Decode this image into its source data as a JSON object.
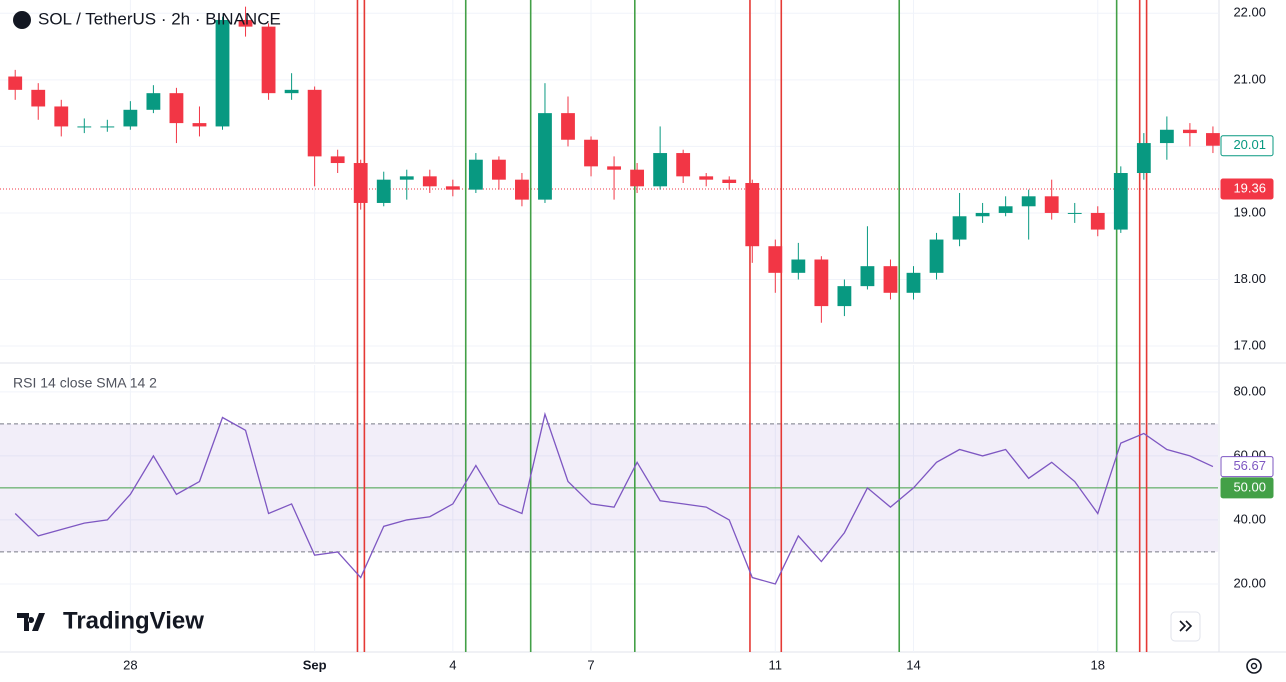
{
  "chart_data": {
    "type": "candlestick",
    "title": "SOL / TetherUS · 2h · BINANCE",
    "brand": "TradingView",
    "x": [
      25.5,
      26,
      26.5,
      27,
      27.5,
      28,
      28.5,
      29,
      29.5,
      30,
      30.5,
      31,
      31.5,
      32,
      32.5,
      33,
      33.5,
      34,
      34.5,
      35,
      35.5,
      36,
      36.5,
      37,
      37.5,
      38,
      38.5,
      39,
      39.5,
      40,
      40.5,
      41,
      41.5,
      42,
      42.5,
      43,
      43.5,
      44,
      44.5,
      45,
      45.5,
      46,
      46.5,
      47,
      47.5,
      48,
      48.5,
      49,
      49.5,
      50,
      50.5,
      51,
      51.5
    ],
    "open": [
      21.05,
      20.85,
      20.6,
      20.3,
      20.3,
      20.3,
      20.55,
      20.8,
      20.35,
      20.3,
      21.9,
      21.8,
      20.8,
      20.85,
      19.85,
      19.75,
      19.15,
      19.5,
      19.55,
      19.4,
      19.35,
      19.8,
      19.5,
      19.2,
      20.5,
      20.1,
      19.7,
      19.65,
      19.4,
      19.9,
      19.55,
      19.5,
      19.45,
      18.5,
      18.1,
      18.3,
      17.6,
      17.9,
      18.2,
      17.8,
      18.1,
      18.6,
      18.95,
      19.0,
      19.1,
      19.25,
      19.0,
      19.0,
      18.75,
      19.6,
      20.05,
      20.25,
      20.2
    ],
    "high": [
      21.15,
      20.95,
      20.7,
      20.42,
      20.4,
      20.68,
      20.92,
      20.88,
      20.6,
      21.95,
      22.1,
      21.85,
      21.1,
      20.9,
      19.95,
      19.8,
      19.62,
      19.65,
      19.65,
      19.5,
      19.9,
      19.85,
      19.6,
      20.95,
      20.75,
      20.15,
      19.85,
      19.75,
      20.3,
      19.95,
      19.6,
      19.55,
      19.5,
      18.6,
      18.55,
      18.35,
      18.0,
      18.8,
      18.3,
      18.2,
      18.7,
      19.3,
      19.15,
      19.25,
      19.35,
      19.5,
      19.15,
      19.1,
      19.7,
      20.2,
      20.45,
      20.35,
      20.3
    ],
    "low": [
      20.7,
      20.4,
      20.15,
      20.2,
      20.22,
      20.25,
      20.5,
      20.05,
      20.15,
      20.25,
      21.65,
      20.7,
      20.7,
      19.4,
      19.6,
      19.05,
      19.1,
      19.2,
      19.3,
      19.25,
      19.3,
      19.35,
      19.1,
      19.15,
      20.0,
      19.55,
      19.2,
      19.3,
      19.35,
      19.45,
      19.4,
      19.35,
      18.25,
      17.8,
      18.0,
      17.35,
      17.45,
      17.85,
      17.7,
      17.7,
      18.0,
      18.5,
      18.85,
      18.95,
      18.6,
      18.9,
      18.85,
      18.65,
      18.7,
      19.5,
      19.8,
      20.0,
      19.9
    ],
    "close": [
      20.85,
      20.6,
      20.3,
      20.3,
      20.3,
      20.55,
      20.8,
      20.35,
      20.3,
      21.9,
      21.8,
      20.8,
      20.85,
      19.85,
      19.75,
      19.15,
      19.5,
      19.55,
      19.4,
      19.35,
      19.8,
      19.5,
      19.2,
      20.5,
      20.1,
      19.7,
      19.65,
      19.4,
      19.9,
      19.55,
      19.5,
      19.45,
      18.5,
      18.1,
      18.3,
      17.6,
      17.9,
      18.2,
      17.8,
      18.1,
      18.6,
      18.95,
      19.0,
      19.1,
      19.25,
      19.0,
      19.0,
      18.75,
      19.6,
      20.05,
      20.25,
      20.2,
      20.01
    ],
    "up_color": "#089981",
    "down_color": "#f23645",
    "xlim": [
      25.17,
      51.61
    ],
    "xticks": [
      28,
      {
        "value": 32,
        "label": "Sep"
      },
      {
        "value": 35,
        "label": "4"
      },
      {
        "value": 38,
        "label": "7"
      },
      {
        "value": 42,
        "label": "11"
      },
      {
        "value": 45,
        "label": "14"
      },
      {
        "value": 49,
        "label": "18"
      }
    ],
    "ylim": [
      16.76,
      22.2
    ],
    "yticks": [
      {
        "value": 17,
        "label": "17.00"
      },
      {
        "value": 18,
        "label": "18.00"
      },
      {
        "value": 19,
        "label": "19.00"
      },
      {
        "value": 20,
        "label": "20.00"
      },
      {
        "value": 21,
        "label": "21.00"
      },
      {
        "value": 22,
        "label": "22.00"
      }
    ],
    "grid": true,
    "price_line": {
      "value": 19.36,
      "color": "#f23645"
    },
    "signals": [
      {
        "color": "#e53935",
        "x": [
          32.93,
          33.08,
          41.45,
          42.13,
          49.91,
          50.06
        ]
      },
      {
        "color": "#43a047",
        "x": [
          35.28,
          36.69,
          38.95,
          44.69,
          49.41
        ]
      }
    ],
    "rsi": {
      "title": "RSI 14 close SMA 14 2",
      "color": "#7e57c2",
      "values": [
        42,
        35,
        37,
        39,
        40,
        48,
        60,
        48,
        52,
        72,
        68,
        42,
        45,
        29,
        30,
        22,
        38,
        40,
        41,
        45,
        57,
        45,
        42,
        73,
        52,
        45,
        44,
        58,
        46,
        45,
        44,
        40,
        22,
        20,
        35,
        27,
        36,
        50,
        44,
        50,
        58,
        62,
        60,
        62,
        53,
        58,
        52,
        42,
        64,
        67,
        62,
        60,
        56.67
      ],
      "ylim": [
        -2.2,
        88.4
      ],
      "yticks": [
        {
          "value": 20,
          "label": "20.00"
        },
        {
          "value": 40,
          "label": "40.00"
        },
        {
          "value": 60,
          "label": "60.00"
        },
        {
          "value": 80,
          "label": "80.00"
        }
      ],
      "band": [
        30,
        70
      ],
      "band_color": "#7e57c2",
      "signal": {
        "value": 50,
        "label": "50.00",
        "color": "#43a047"
      }
    }
  }
}
